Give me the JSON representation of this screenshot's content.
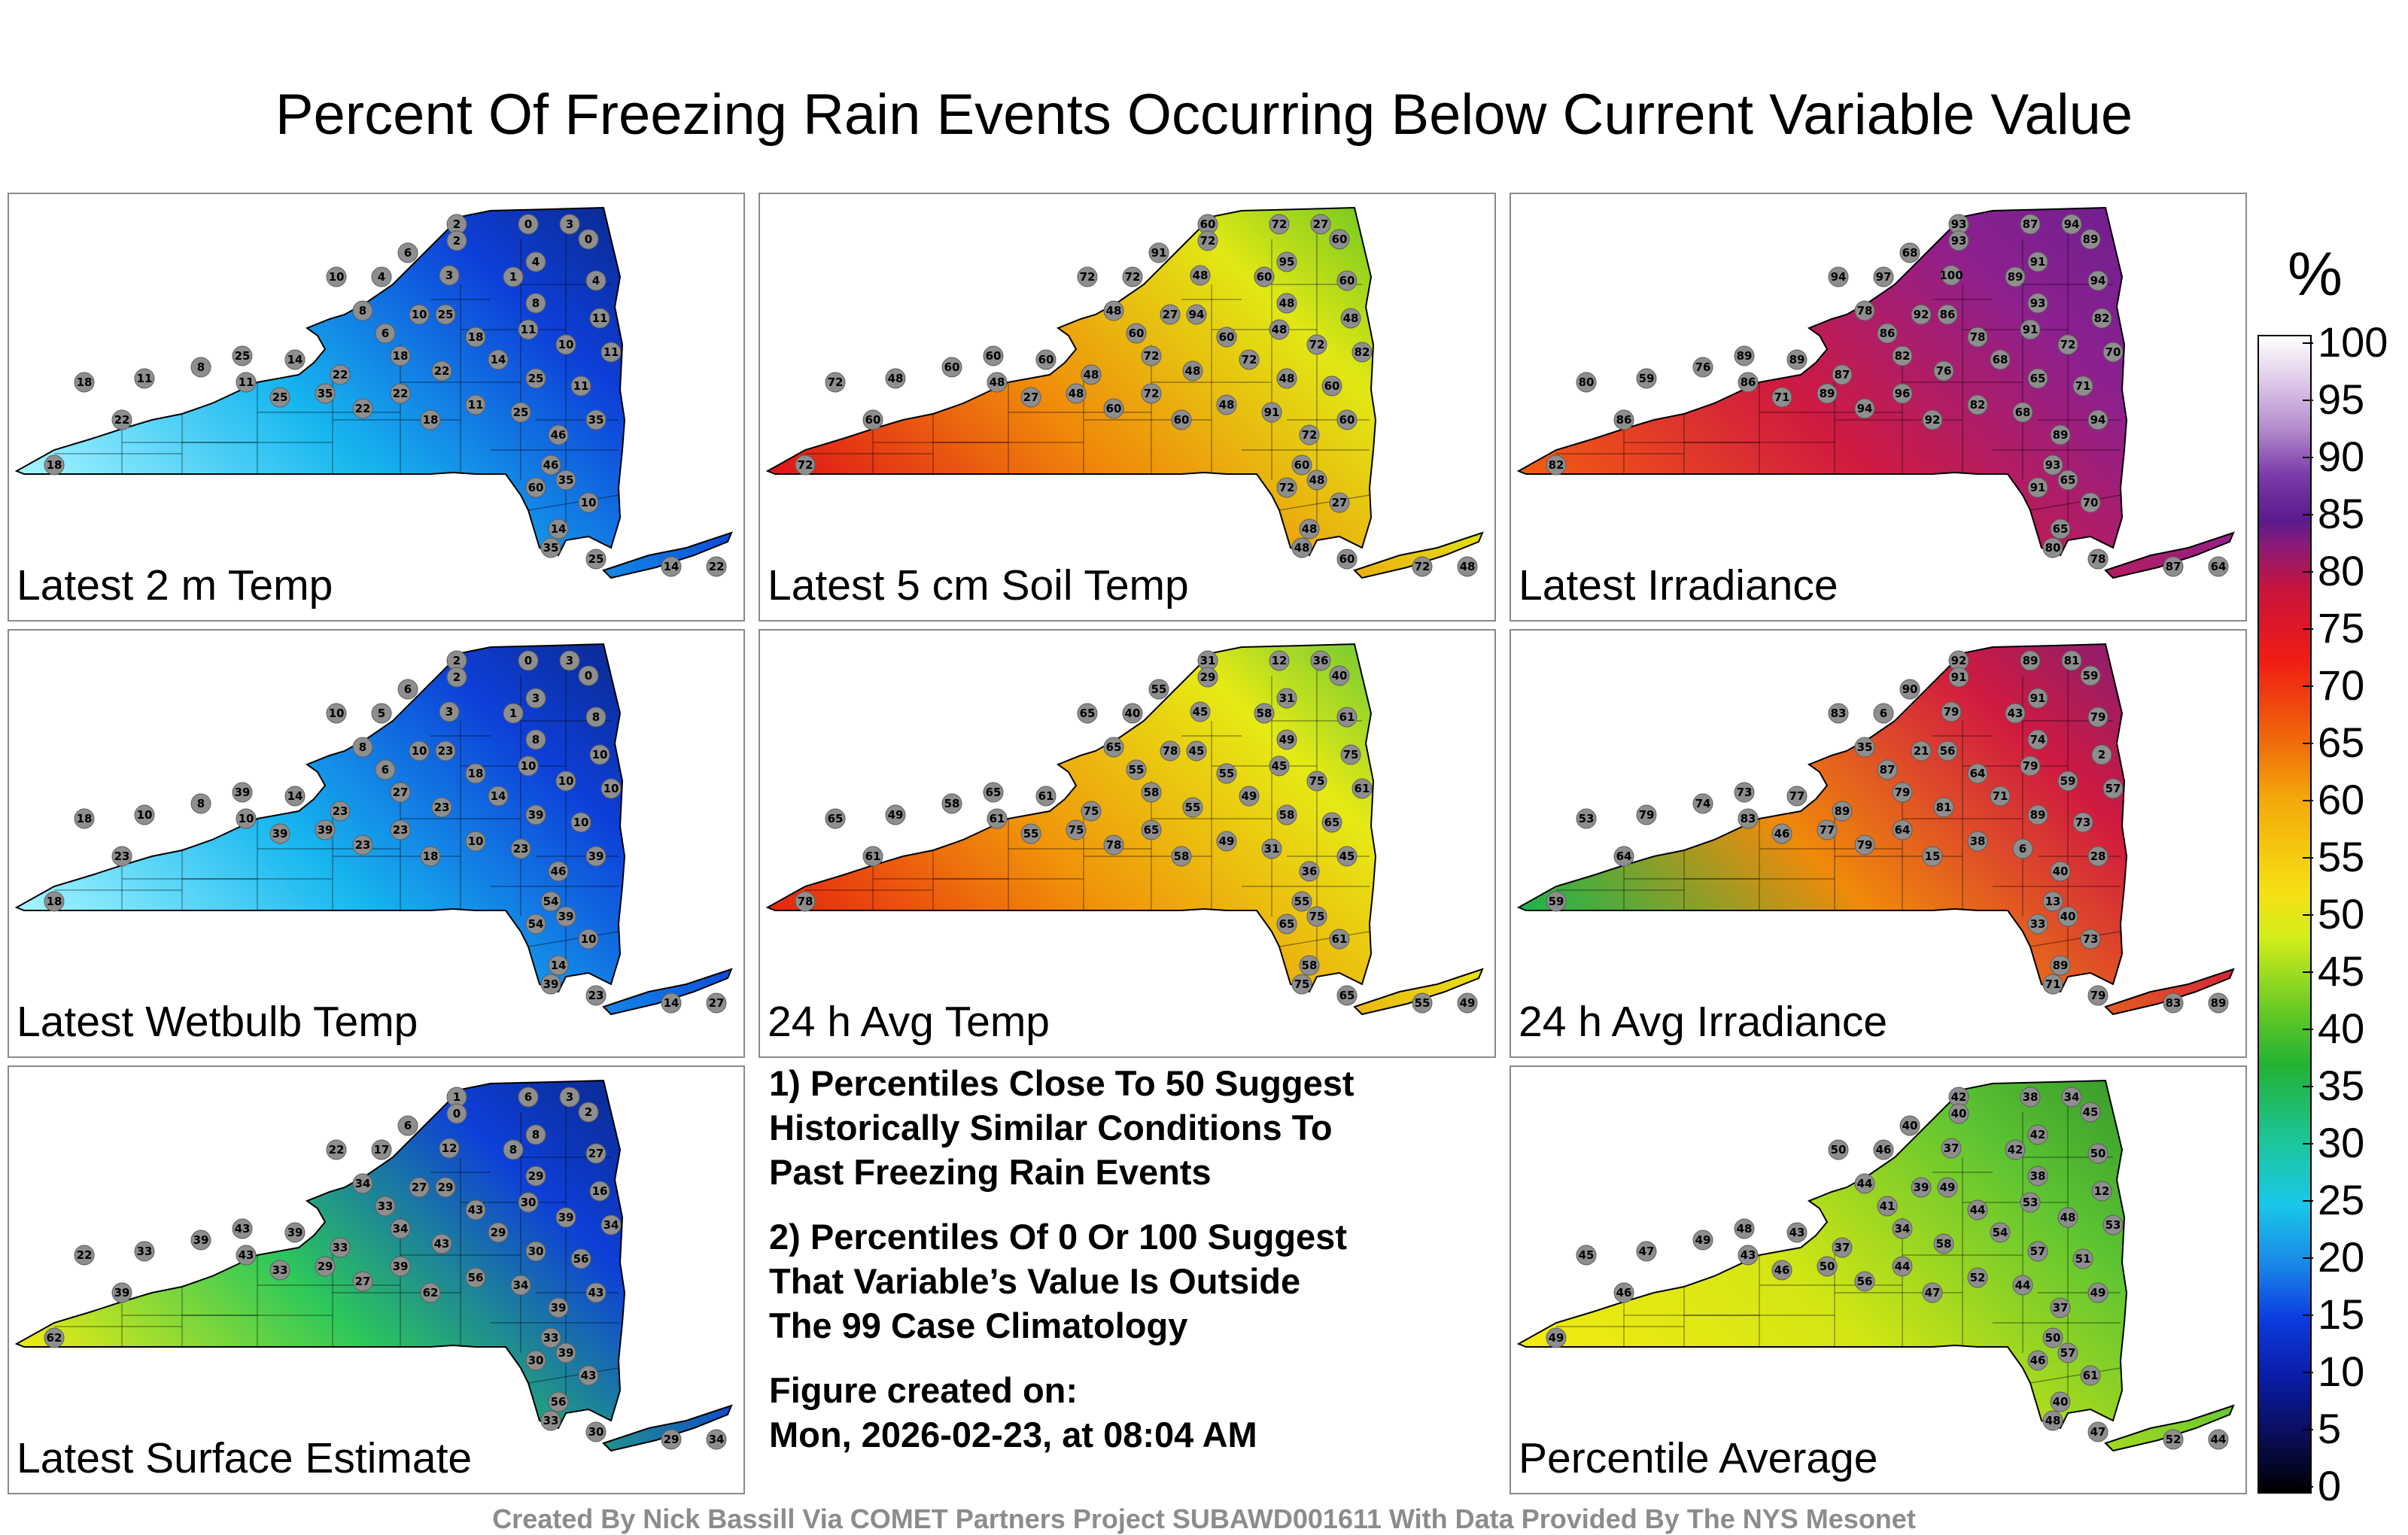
{
  "title": "Percent Of Freezing Rain Events Occurring Below Current Variable Value",
  "colorbar": {
    "unit": "%",
    "ticks": [
      "100",
      "95",
      "90",
      "85",
      "80",
      "75",
      "70",
      "65",
      "60",
      "55",
      "50",
      "45",
      "40",
      "35",
      "30",
      "25",
      "20",
      "15",
      "10",
      "5",
      "0"
    ]
  },
  "panels": [
    {
      "label": "Latest 2 m Temp",
      "colors": [
        "#0b1a5e",
        "#0d3fd8",
        "#17b7ef",
        "#9ff3ff"
      ],
      "stations": [
        "2",
        "2",
        "0",
        "3",
        "0",
        "4",
        "6",
        "3",
        "4",
        "10",
        "4",
        "1",
        "11",
        "10",
        "8",
        "6",
        "8",
        "11",
        "25",
        "14",
        "22",
        "18",
        "22",
        "14",
        "25",
        "11",
        "11",
        "10",
        "18",
        "25",
        "18",
        "11",
        "8",
        "11",
        "25",
        "35",
        "22",
        "22",
        "18",
        "11",
        "25",
        "46",
        "35",
        "46",
        "60",
        "35",
        "10",
        "14",
        "22",
        "14",
        "25",
        "35",
        "22",
        "18"
      ]
    },
    {
      "label": "Latest 5 cm Soil Temp",
      "colors": [
        "#27b22a",
        "#e1e814",
        "#f08a0a",
        "#e01818"
      ],
      "stations": [
        "60",
        "72",
        "72",
        "27",
        "60",
        "95",
        "91",
        "48",
        "72",
        "72",
        "60",
        "60",
        "48",
        "27",
        "48",
        "60",
        "48",
        "48",
        "60",
        "60",
        "48",
        "72",
        "48",
        "72",
        "48",
        "60",
        "82",
        "72",
        "60",
        "94",
        "72",
        "48",
        "60",
        "48",
        "27",
        "48",
        "60",
        "72",
        "60",
        "48",
        "91",
        "72",
        "60",
        "60",
        "72",
        "48",
        "27",
        "48",
        "48",
        "72",
        "60",
        "48",
        "60",
        "72"
      ]
    },
    {
      "label": "Latest Irradiance",
      "colors": [
        "#5c2090",
        "#8c2090",
        "#d01a40",
        "#f25a12"
      ],
      "stations": [
        "93",
        "93",
        "87",
        "94",
        "89",
        "91",
        "68",
        "100",
        "97",
        "94",
        "94",
        "89",
        "82",
        "92",
        "78",
        "86",
        "93",
        "91",
        "89",
        "89",
        "87",
        "82",
        "76",
        "68",
        "65",
        "71",
        "70",
        "72",
        "78",
        "86",
        "80",
        "59",
        "76",
        "86",
        "71",
        "89",
        "94",
        "96",
        "92",
        "82",
        "68",
        "89",
        "94",
        "93",
        "91",
        "65",
        "70",
        "65",
        "64",
        "87",
        "78",
        "80",
        "86",
        "82"
      ]
    },
    {
      "label": "Latest Wetbulb Temp",
      "colors": [
        "#0b1a5e",
        "#0d3fd8",
        "#17b7ef",
        "#9ff3ff"
      ],
      "stations": [
        "2",
        "2",
        "0",
        "3",
        "0",
        "3",
        "6",
        "3",
        "5",
        "10",
        "8",
        "1",
        "10",
        "10",
        "8",
        "6",
        "8",
        "10",
        "39",
        "14",
        "23",
        "27",
        "23",
        "14",
        "39",
        "10",
        "10",
        "10",
        "18",
        "23",
        "18",
        "10",
        "8",
        "10",
        "39",
        "39",
        "23",
        "23",
        "18",
        "10",
        "23",
        "46",
        "39",
        "54",
        "54",
        "39",
        "10",
        "14",
        "27",
        "14",
        "23",
        "39",
        "23",
        "18"
      ]
    },
    {
      "label": "24 h Avg Temp",
      "colors": [
        "#22b44a",
        "#e6ea14",
        "#f0960a",
        "#e82810"
      ],
      "stations": [
        "31",
        "29",
        "12",
        "36",
        "40",
        "31",
        "55",
        "45",
        "40",
        "65",
        "61",
        "58",
        "75",
        "78",
        "65",
        "55",
        "49",
        "45",
        "65",
        "61",
        "75",
        "58",
        "55",
        "49",
        "58",
        "65",
        "61",
        "75",
        "55",
        "45",
        "65",
        "49",
        "58",
        "61",
        "55",
        "75",
        "78",
        "65",
        "58",
        "49",
        "31",
        "36",
        "45",
        "55",
        "65",
        "75",
        "61",
        "58",
        "49",
        "55",
        "65",
        "75",
        "61",
        "78"
      ]
    },
    {
      "label": "24 h Avg Irradiance",
      "colors": [
        "#5c2090",
        "#d01a40",
        "#f08a0a",
        "#22b44a"
      ],
      "stations": [
        "92",
        "91",
        "89",
        "81",
        "59",
        "91",
        "90",
        "79",
        "6",
        "83",
        "79",
        "43",
        "2",
        "21",
        "35",
        "87",
        "74",
        "79",
        "73",
        "77",
        "89",
        "79",
        "81",
        "71",
        "89",
        "73",
        "57",
        "59",
        "64",
        "56",
        "53",
        "79",
        "74",
        "83",
        "46",
        "77",
        "79",
        "64",
        "15",
        "38",
        "6",
        "40",
        "28",
        "13",
        "33",
        "40",
        "73",
        "89",
        "89",
        "83",
        "79",
        "71",
        "64",
        "59"
      ]
    },
    {
      "label": "Latest Surface Estimate",
      "colors": [
        "#0b1a5e",
        "#0d3fd8",
        "#2dc85a",
        "#e6ea14"
      ],
      "stations": [
        "1",
        "0",
        "6",
        "3",
        "2",
        "8",
        "6",
        "12",
        "17",
        "22",
        "27",
        "8",
        "16",
        "27",
        "34",
        "33",
        "29",
        "30",
        "43",
        "39",
        "33",
        "34",
        "43",
        "29",
        "30",
        "56",
        "34",
        "39",
        "43",
        "29",
        "22",
        "33",
        "39",
        "43",
        "33",
        "29",
        "27",
        "39",
        "62",
        "56",
        "34",
        "39",
        "43",
        "33",
        "30",
        "39",
        "43",
        "56",
        "34",
        "29",
        "30",
        "33",
        "39",
        "62"
      ]
    },
    {
      "label": "Percentile Average",
      "colors": [
        "#1e7e28",
        "#5cc432",
        "#d2e614",
        "#f2ea10"
      ],
      "stations": [
        "42",
        "40",
        "38",
        "34",
        "45",
        "42",
        "40",
        "37",
        "46",
        "50",
        "50",
        "42",
        "12",
        "39",
        "44",
        "41",
        "38",
        "53",
        "48",
        "43",
        "37",
        "34",
        "58",
        "54",
        "57",
        "51",
        "53",
        "48",
        "44",
        "49",
        "45",
        "47",
        "49",
        "43",
        "46",
        "50",
        "56",
        "44",
        "47",
        "52",
        "44",
        "37",
        "49",
        "50",
        "46",
        "57",
        "61",
        "40",
        "44",
        "52",
        "47",
        "48",
        "46",
        "49"
      ]
    }
  ],
  "notes": {
    "line1": "1) Percentiles Close To 50 Suggest",
    "line2": "Historically Similar Conditions To",
    "line3": "Past Freezing Rain Events",
    "line4": "2) Percentiles Of 0 Or 100 Suggest",
    "line5": "That Variable’s Value Is Outside",
    "line6": "The 99 Case Climatology",
    "line7": "Figure created on:",
    "line8": "Mon, 2026-02-23, at 08:04 AM"
  },
  "credit": "Created By Nick Bassill Via COMET Partners Project SUBAWD001611 With Data Provided By The NYS Mesonet"
}
